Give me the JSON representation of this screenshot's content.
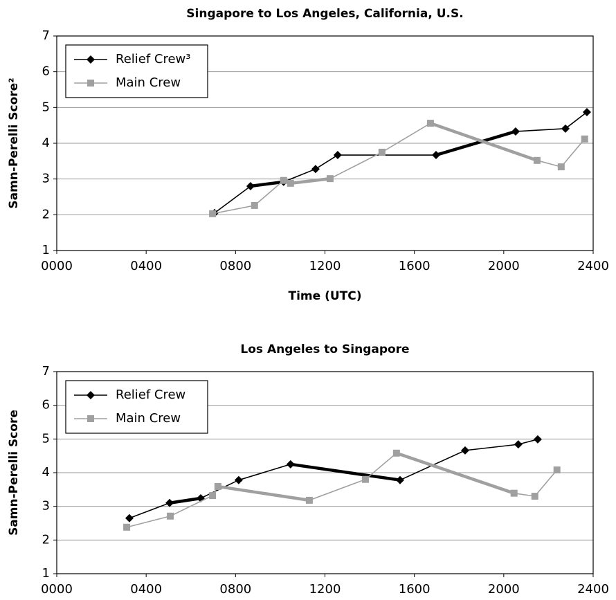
{
  "chart_data": [
    {
      "type": "line",
      "title": "Singapore to Los Angeles, California, U.S.",
      "x_label": "Time (UTC)",
      "y_label": "Samn-Perelli Score²",
      "xlim": [
        0,
        2400
      ],
      "xticks": [
        {
          "value": 0,
          "label": "0000"
        },
        {
          "value": 400,
          "label": "0400"
        },
        {
          "value": 800,
          "label": "0800"
        },
        {
          "value": 1200,
          "label": "1200"
        },
        {
          "value": 1600,
          "label": "1600"
        },
        {
          "value": 2000,
          "label": "2000"
        },
        {
          "value": 2400,
          "label": "2400"
        }
      ],
      "ylim": [
        1,
        7
      ],
      "yticks": [
        1,
        2,
        3,
        4,
        5,
        6,
        7
      ],
      "grid": true,
      "legend": "upper left",
      "series": [
        {
          "name": "Relief Crew³",
          "color": "#000000",
          "marker": "diamond",
          "bold_segments": [
            1,
            5
          ],
          "x": [
            706,
            867,
            1015,
            1158,
            1257,
            1697,
            2053,
            2276,
            2372
          ],
          "values": [
            2.05,
            2.8,
            2.92,
            3.28,
            3.67,
            3.67,
            4.33,
            4.41,
            4.87
          ]
        },
        {
          "name": "Main Crew",
          "color": "#a0a0a0",
          "marker": "square",
          "bold_segments": [
            3,
            6
          ],
          "x": [
            697,
            885,
            1015,
            1046,
            1223,
            1455,
            1672,
            2149,
            2257,
            2362
          ],
          "values": [
            2.03,
            2.26,
            2.96,
            2.88,
            3.01,
            3.75,
            4.56,
            3.52,
            3.34,
            4.12
          ]
        }
      ]
    },
    {
      "type": "line",
      "title": "Los Angeles to Singapore",
      "y_label": "Samn-Perelli Score",
      "xlim": [
        0,
        2400
      ],
      "xticks": [
        {
          "value": 0,
          "label": "0000"
        },
        {
          "value": 400,
          "label": "0400"
        },
        {
          "value": 800,
          "label": "0800"
        },
        {
          "value": 1200,
          "label": "1200"
        },
        {
          "value": 1600,
          "label": "1600"
        },
        {
          "value": 2000,
          "label": "2000"
        },
        {
          "value": 2400,
          "label": "2400"
        }
      ],
      "ylim": [
        1,
        7
      ],
      "yticks": [
        1,
        2,
        3,
        4,
        5,
        6,
        7
      ],
      "grid": true,
      "legend": "upper left",
      "series": [
        {
          "name": "Relief Crew",
          "color": "#000000",
          "marker": "diamond",
          "bold_segments": [
            1,
            4
          ],
          "x": [
            325,
            505,
            644,
            814,
            1046,
            1536,
            1827,
            2065,
            2152
          ],
          "values": [
            2.65,
            3.1,
            3.24,
            3.78,
            4.25,
            3.78,
            4.66,
            4.84,
            4.99
          ]
        },
        {
          "name": "Main Crew",
          "color": "#a0a0a0",
          "marker": "square",
          "bold_segments": [
            3,
            6
          ],
          "x": [
            313,
            508,
            697,
            721,
            1130,
            1381,
            1520,
            2046,
            2139,
            2238
          ],
          "values": [
            2.38,
            2.71,
            3.32,
            3.59,
            3.18,
            3.8,
            4.58,
            3.39,
            3.3,
            4.08
          ]
        }
      ]
    }
  ]
}
